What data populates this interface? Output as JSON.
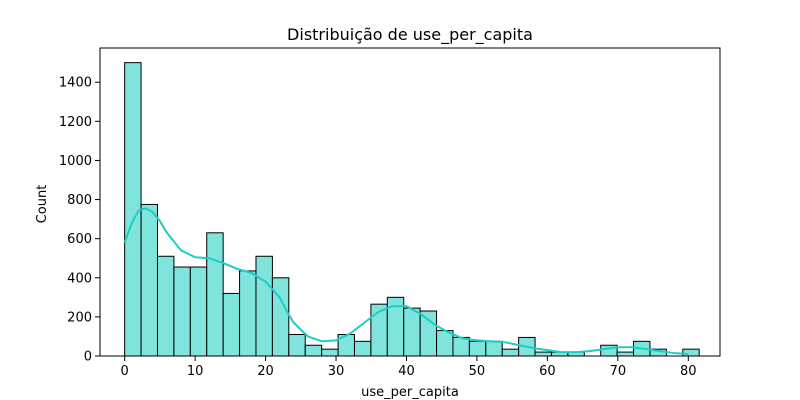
{
  "chart_data": {
    "type": "bar",
    "title": "Distribuição de use_per_capita",
    "xlabel": "use_per_capita",
    "ylabel": "Count",
    "xlim": [
      -3.5,
      84.5
    ],
    "ylim": [
      0,
      1575
    ],
    "xticks": [
      0,
      10,
      20,
      30,
      40,
      50,
      60,
      70,
      80
    ],
    "yticks": [
      0,
      200,
      400,
      600,
      800,
      1000,
      1200,
      1400
    ],
    "grid": false,
    "bin_start": 0,
    "bin_width": 2.33,
    "bins": [
      {
        "x0": 0.0,
        "count": 1500
      },
      {
        "x0": 2.33,
        "count": 775
      },
      {
        "x0": 4.66,
        "count": 510
      },
      {
        "x0": 6.99,
        "count": 455
      },
      {
        "x0": 9.32,
        "count": 455
      },
      {
        "x0": 11.65,
        "count": 630
      },
      {
        "x0": 13.98,
        "count": 320
      },
      {
        "x0": 16.31,
        "count": 435
      },
      {
        "x0": 18.64,
        "count": 510
      },
      {
        "x0": 20.97,
        "count": 400
      },
      {
        "x0": 23.3,
        "count": 110
      },
      {
        "x0": 25.63,
        "count": 55
      },
      {
        "x0": 27.96,
        "count": 35
      },
      {
        "x0": 30.29,
        "count": 110
      },
      {
        "x0": 32.62,
        "count": 75
      },
      {
        "x0": 34.95,
        "count": 265
      },
      {
        "x0": 37.28,
        "count": 300
      },
      {
        "x0": 39.61,
        "count": 245
      },
      {
        "x0": 41.94,
        "count": 230
      },
      {
        "x0": 44.27,
        "count": 130
      },
      {
        "x0": 46.6,
        "count": 95
      },
      {
        "x0": 48.93,
        "count": 75
      },
      {
        "x0": 51.26,
        "count": 75
      },
      {
        "x0": 53.59,
        "count": 35
      },
      {
        "x0": 55.92,
        "count": 95
      },
      {
        "x0": 58.25,
        "count": 20
      },
      {
        "x0": 60.58,
        "count": 20
      },
      {
        "x0": 62.91,
        "count": 20
      },
      {
        "x0": 65.24,
        "count": 0
      },
      {
        "x0": 67.57,
        "count": 55
      },
      {
        "x0": 69.9,
        "count": 20
      },
      {
        "x0": 72.23,
        "count": 75
      },
      {
        "x0": 74.56,
        "count": 35
      },
      {
        "x0": 76.89,
        "count": 0
      },
      {
        "x0": 79.22,
        "count": 35
      }
    ],
    "kde": {
      "x": [
        0,
        1,
        2,
        3,
        4,
        5,
        6,
        8,
        10,
        12,
        14,
        16,
        18,
        20,
        22,
        23,
        24,
        26,
        28,
        30,
        32,
        34,
        36,
        38,
        40,
        42,
        44,
        46,
        48,
        50,
        52,
        54,
        56,
        58,
        60,
        62,
        64,
        66,
        68,
        70,
        72,
        74,
        76,
        78,
        80
      ],
      "y": [
        580,
        680,
        745,
        755,
        735,
        690,
        630,
        540,
        505,
        500,
        475,
        445,
        425,
        380,
        300,
        230,
        170,
        100,
        75,
        80,
        115,
        170,
        225,
        255,
        255,
        215,
        160,
        120,
        90,
        80,
        75,
        70,
        55,
        40,
        30,
        20,
        20,
        25,
        35,
        45,
        45,
        35,
        25,
        15,
        10
      ]
    },
    "bar_color": "#7fe5dc",
    "bar_edge_color": "#000000",
    "kde_color": "#1ccdc4"
  }
}
